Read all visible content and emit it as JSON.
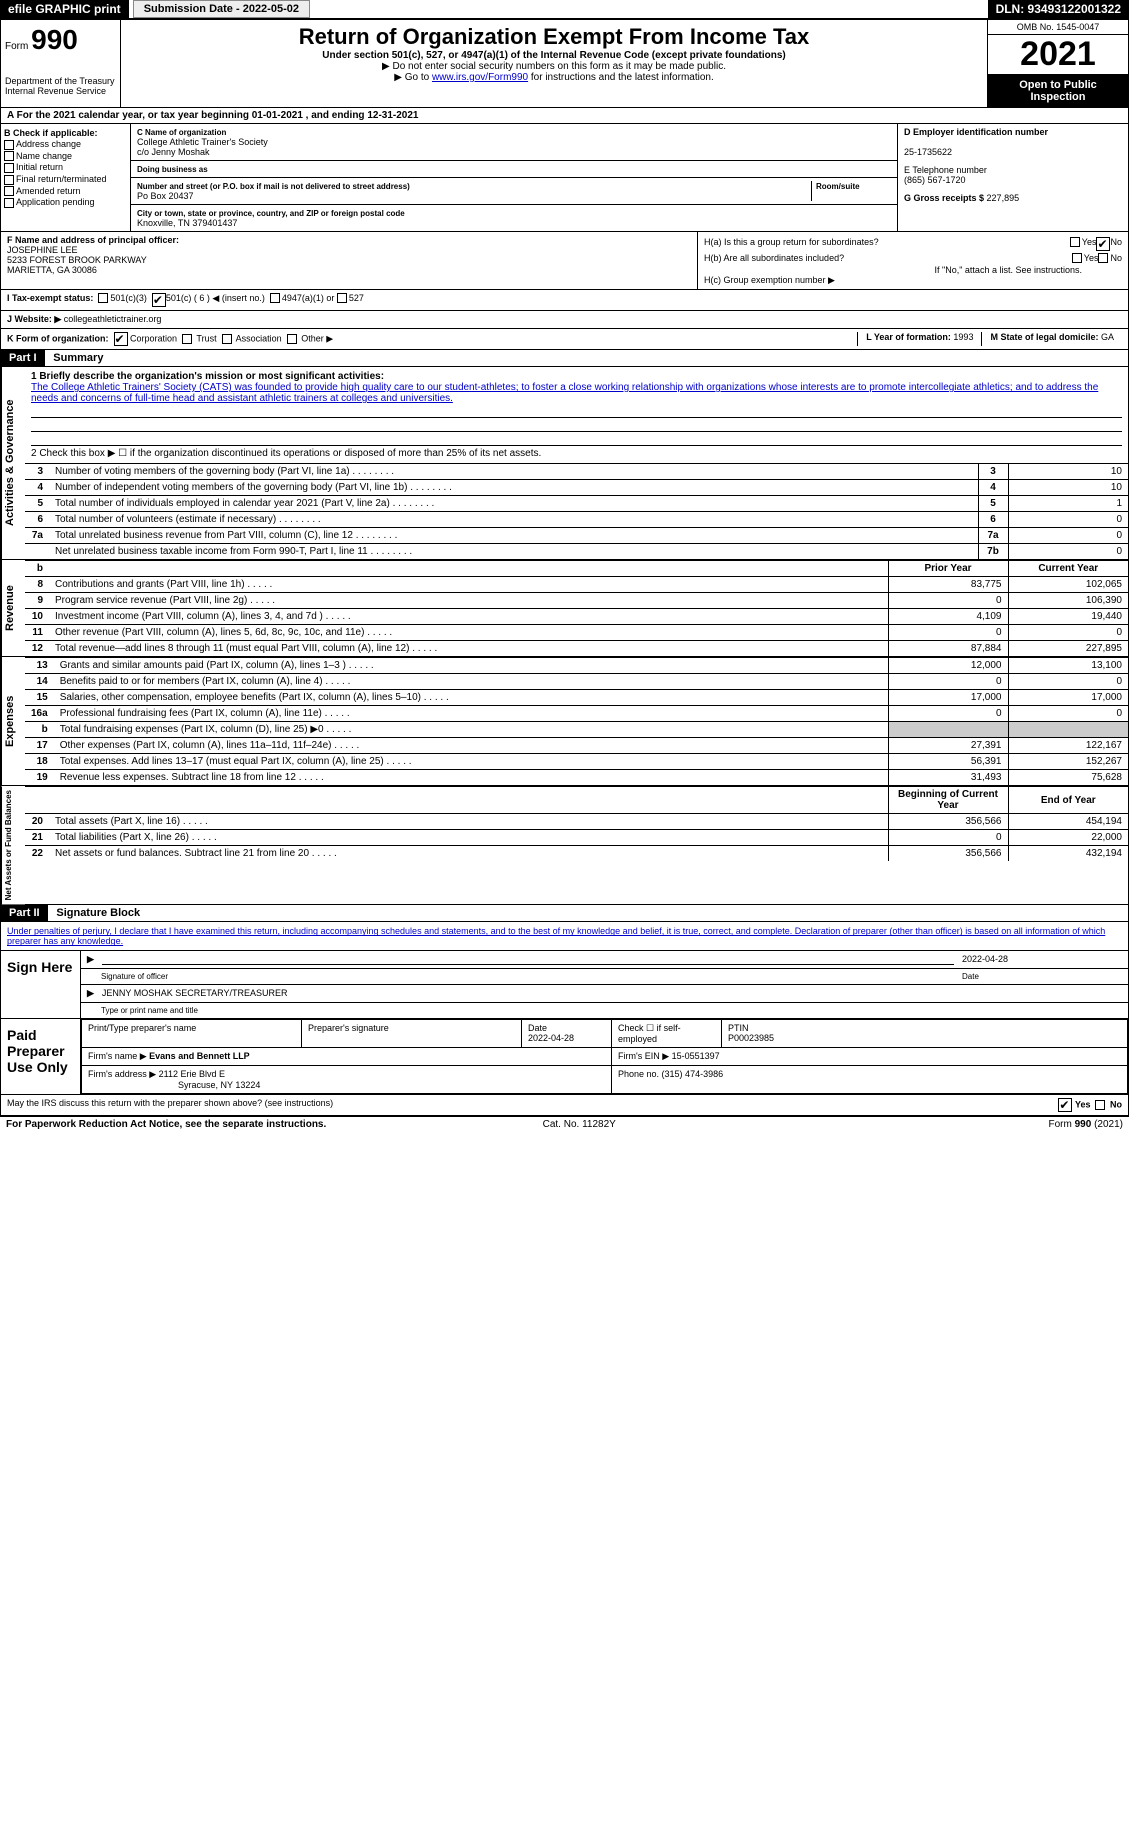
{
  "topbar": {
    "efile": "efile GRAPHIC print",
    "submission": "Submission Date - 2022-05-02",
    "dln": "DLN: 93493122001322"
  },
  "header": {
    "form_prefix": "Form",
    "form_num": "990",
    "dept": "Department of the Treasury Internal Revenue Service",
    "title": "Return of Organization Exempt From Income Tax",
    "subtitle": "Under section 501(c), 527, or 4947(a)(1) of the Internal Revenue Code (except private foundations)",
    "arrow1": "▶ Do not enter social security numbers on this form as it may be made public.",
    "arrow2_pre": "▶ Go to ",
    "arrow2_link": "www.irs.gov/Form990",
    "arrow2_post": " for instructions and the latest information.",
    "omb": "OMB No. 1545-0047",
    "year": "2021",
    "open": "Open to Public Inspection"
  },
  "rowA": "A For the 2021 calendar year, or tax year beginning 01-01-2021     , and ending 12-31-2021",
  "colB": {
    "label": "B Check if applicable:",
    "items": [
      "Address change",
      "Name change",
      "Initial return",
      "Final return/terminated",
      "Amended return",
      "Application pending"
    ]
  },
  "colC": {
    "name_label": "C Name of organization",
    "name": "College Athletic Trainer's Society",
    "co": "c/o Jenny Moshak",
    "dba_label": "Doing business as",
    "dba": "",
    "addr_label": "Number and street (or P.O. box if mail is not delivered to street address)",
    "room_label": "Room/suite",
    "addr": "Po Box 20437",
    "city_label": "City or town, state or province, country, and ZIP or foreign postal code",
    "city": "Knoxville, TN  379401437"
  },
  "colD": {
    "ein_label": "D  Employer identification number",
    "ein": "25-1735622",
    "phone_label": "E  Telephone number",
    "phone": "(865) 567-1720",
    "gross_label": "G  Gross receipts $ ",
    "gross": "227,895"
  },
  "colF": {
    "label": "F  Name and address of principal officer:",
    "name": "JOSEPHINE LEE",
    "addr1": "5233 FOREST BROOK PARKWAY",
    "addr2": "MARIETTA, GA  30086"
  },
  "colH": {
    "ha": "H(a)  Is this a group return for subordinates?",
    "hb": "H(b)  Are all subordinates included?",
    "hb_note": "If \"No,\" attach a list. See instructions.",
    "hc": "H(c)  Group exemption number ▶",
    "yes": "Yes",
    "no": "No"
  },
  "rowI": {
    "label": "I   Tax-exempt status:",
    "opt1": "501(c)(3)",
    "opt2": "501(c) ( 6 ) ◀ (insert no.)",
    "opt3": "4947(a)(1) or",
    "opt4": "527"
  },
  "rowJ": {
    "label": "J   Website: ▶",
    "val": "collegeathletictrainer.org"
  },
  "rowK": {
    "label": "K Form of organization:",
    "opts": [
      "Corporation",
      "Trust",
      "Association",
      "Other ▶"
    ],
    "L_label": "L  Year of formation: ",
    "L_val": "1993",
    "M_label": "M State of legal domicile: ",
    "M_val": "GA"
  },
  "part1": {
    "hdr": "Part I",
    "title": "Summary",
    "q1_label": "1  Briefly describe the organization's mission or most significant activities:",
    "q1_text": "The College Athletic Trainers' Society (CATS) was founded to provide high quality care to our student-athletes; to foster a close working relationship with organizations whose interests are to promote intercollegiate athletics; and to address the needs and concerns of full-time head and assistant athletic trainers at colleges and universities.",
    "q2": "2   Check this box ▶ ☐  if the organization discontinued its operations or disposed of more than 25% of its net assets."
  },
  "sides": {
    "gov": "Activities & Governance",
    "rev": "Revenue",
    "exp": "Expenses",
    "net": "Net Assets or Fund Balances"
  },
  "lines_gov": [
    {
      "n": "3",
      "t": "Number of voting members of the governing body (Part VI, line 1a)",
      "box": "3",
      "v": "10"
    },
    {
      "n": "4",
      "t": "Number of independent voting members of the governing body (Part VI, line 1b)",
      "box": "4",
      "v": "10"
    },
    {
      "n": "5",
      "t": "Total number of individuals employed in calendar year 2021 (Part V, line 2a)",
      "box": "5",
      "v": "1"
    },
    {
      "n": "6",
      "t": "Total number of volunteers (estimate if necessary)",
      "box": "6",
      "v": "0"
    },
    {
      "n": "7a",
      "t": "Total unrelated business revenue from Part VIII, column (C), line 12",
      "box": "7a",
      "v": "0"
    },
    {
      "n": "",
      "t": "Net unrelated business taxable income from Form 990-T, Part I, line 11",
      "box": "7b",
      "v": "0"
    }
  ],
  "col_hdrs": {
    "b": "b",
    "prior": "Prior Year",
    "current": "Current Year"
  },
  "lines_rev": [
    {
      "n": "8",
      "t": "Contributions and grants (Part VIII, line 1h)",
      "p": "83,775",
      "c": "102,065"
    },
    {
      "n": "9",
      "t": "Program service revenue (Part VIII, line 2g)",
      "p": "0",
      "c": "106,390"
    },
    {
      "n": "10",
      "t": "Investment income (Part VIII, column (A), lines 3, 4, and 7d )",
      "p": "4,109",
      "c": "19,440"
    },
    {
      "n": "11",
      "t": "Other revenue (Part VIII, column (A), lines 5, 6d, 8c, 9c, 10c, and 11e)",
      "p": "0",
      "c": "0"
    },
    {
      "n": "12",
      "t": "Total revenue—add lines 8 through 11 (must equal Part VIII, column (A), line 12)",
      "p": "87,884",
      "c": "227,895"
    }
  ],
  "lines_exp": [
    {
      "n": "13",
      "t": "Grants and similar amounts paid (Part IX, column (A), lines 1–3 )",
      "p": "12,000",
      "c": "13,100"
    },
    {
      "n": "14",
      "t": "Benefits paid to or for members (Part IX, column (A), line 4)",
      "p": "0",
      "c": "0"
    },
    {
      "n": "15",
      "t": "Salaries, other compensation, employee benefits (Part IX, column (A), lines 5–10)",
      "p": "17,000",
      "c": "17,000"
    },
    {
      "n": "16a",
      "t": "Professional fundraising fees (Part IX, column (A), line 11e)",
      "p": "0",
      "c": "0"
    },
    {
      "n": "b",
      "t": "Total fundraising expenses (Part IX, column (D), line 25) ▶0",
      "p": "",
      "c": "",
      "grey": true
    },
    {
      "n": "17",
      "t": "Other expenses (Part IX, column (A), lines 11a–11d, 11f–24e)",
      "p": "27,391",
      "c": "122,167"
    },
    {
      "n": "18",
      "t": "Total expenses. Add lines 13–17 (must equal Part IX, column (A), line 25)",
      "p": "56,391",
      "c": "152,267"
    },
    {
      "n": "19",
      "t": "Revenue less expenses. Subtract line 18 from line 12",
      "p": "31,493",
      "c": "75,628"
    }
  ],
  "net_hdrs": {
    "b": "Beginning of Current Year",
    "e": "End of Year"
  },
  "lines_net": [
    {
      "n": "20",
      "t": "Total assets (Part X, line 16)",
      "p": "356,566",
      "c": "454,194"
    },
    {
      "n": "21",
      "t": "Total liabilities (Part X, line 26)",
      "p": "0",
      "c": "22,000"
    },
    {
      "n": "22",
      "t": "Net assets or fund balances. Subtract line 21 from line 20",
      "p": "356,566",
      "c": "432,194"
    }
  ],
  "part2": {
    "hdr": "Part II",
    "title": "Signature Block",
    "decl": "Under penalties of perjury, I declare that I have examined this return, including accompanying schedules and statements, and to the best of my knowledge and belief, it is true, correct, and complete. Declaration of preparer (other than officer) is based on all information of which preparer has any knowledge."
  },
  "sign": {
    "left": "Sign Here",
    "sig_label": "Signature of officer",
    "date": "2022-04-28",
    "date_label": "Date",
    "name": "JENNY MOSHAK  SECRETARY/TREASURER",
    "name_label": "Type or print name and title"
  },
  "paid": {
    "left": "Paid Preparer Use Only",
    "h1": "Print/Type preparer's name",
    "h2": "Preparer's signature",
    "h3": "Date",
    "h3v": "2022-04-28",
    "h4": "Check ☐ if self-employed",
    "h5": "PTIN",
    "h5v": "P00023985",
    "firm_label": "Firm's name     ▶",
    "firm": "Evans and Bennett LLP",
    "ein_label": "Firm's EIN ▶ ",
    "ein": "15-0551397",
    "addr_label": "Firm's address ▶",
    "addr1": "2112 Erie Blvd E",
    "addr2": "Syracuse, NY  13224",
    "phone_label": "Phone no. ",
    "phone": "(315) 474-3986"
  },
  "may": {
    "q": "May the IRS discuss this return with the preparer shown above? (see instructions)",
    "yes": "Yes",
    "no": "No"
  },
  "footer": {
    "l": "For Paperwork Reduction Act Notice, see the separate instructions.",
    "m": "Cat. No. 11282Y",
    "r": "Form 990 (2021)"
  }
}
